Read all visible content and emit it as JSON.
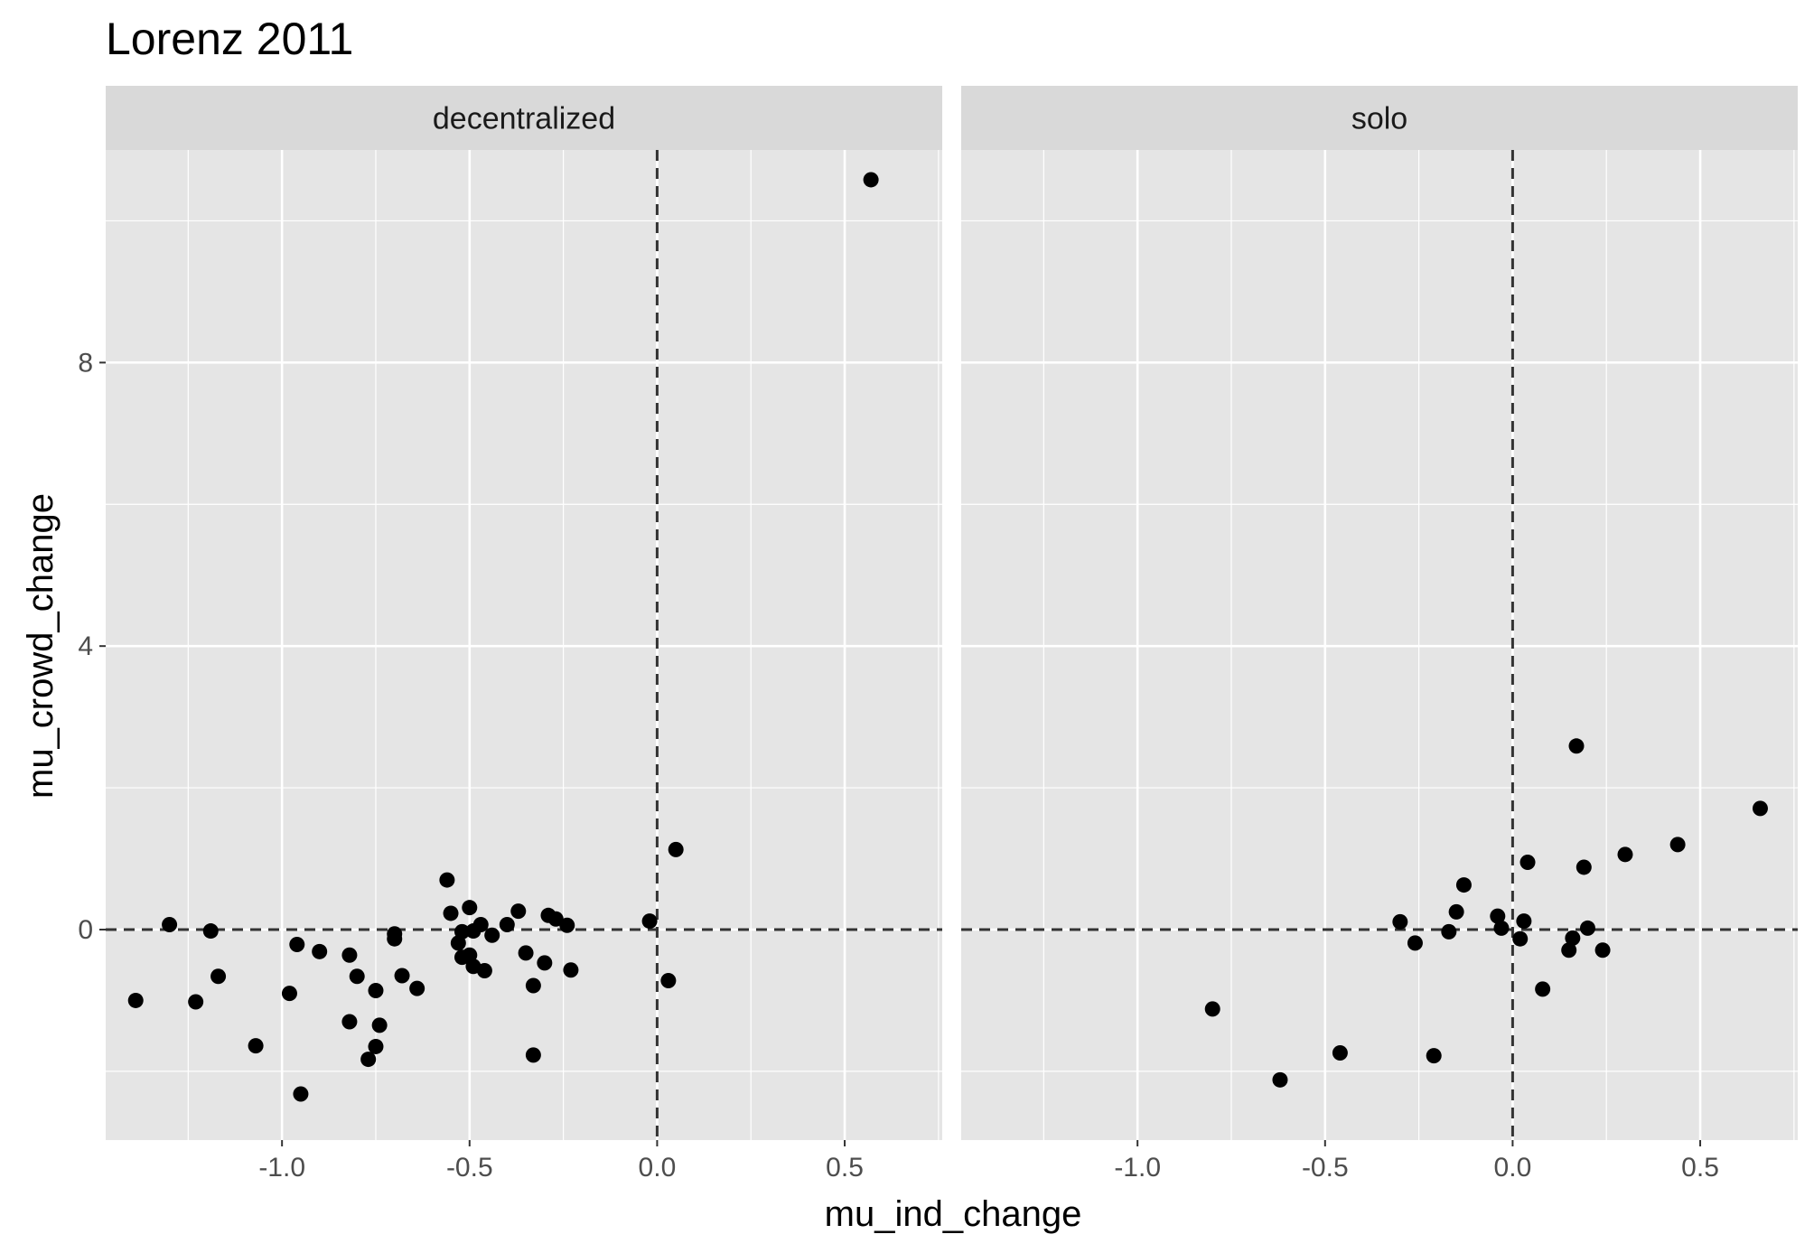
{
  "chart_data": {
    "type": "scatter",
    "title": "Lorenz 2011",
    "xlabel": "mu_ind_change",
    "ylabel": "mu_crowd_change",
    "xlim": [
      -1.47,
      0.76
    ],
    "ylim": [
      -2.97,
      11.0
    ],
    "x_ticks": [
      -1.0,
      -0.5,
      0.0,
      0.5
    ],
    "x_tick_labels": [
      "-1.0",
      "-0.5",
      "0.0",
      "0.5"
    ],
    "y_ticks": [
      0,
      4,
      8
    ],
    "y_tick_labels": [
      "0",
      "4",
      "8"
    ],
    "reference_lines": {
      "x": 0,
      "y": 0,
      "style": "dashed"
    },
    "grid": true,
    "point_color": "#000000",
    "panel_background": "#e5e5e5",
    "strip_background": "#d9d9d9",
    "panels": [
      {
        "name": "decentralized",
        "points": [
          {
            "x": -1.39,
            "y": -1.0
          },
          {
            "x": -1.3,
            "y": 0.07
          },
          {
            "x": -1.23,
            "y": -1.02
          },
          {
            "x": -1.19,
            "y": -0.02
          },
          {
            "x": -1.17,
            "y": -0.66
          },
          {
            "x": -1.07,
            "y": -1.64
          },
          {
            "x": -0.98,
            "y": -0.9
          },
          {
            "x": -0.96,
            "y": -0.21
          },
          {
            "x": -0.95,
            "y": -2.32
          },
          {
            "x": -0.9,
            "y": -0.31
          },
          {
            "x": -0.82,
            "y": -0.36
          },
          {
            "x": -0.82,
            "y": -1.3
          },
          {
            "x": -0.8,
            "y": -0.66
          },
          {
            "x": -0.77,
            "y": -1.83
          },
          {
            "x": -0.75,
            "y": -0.86
          },
          {
            "x": -0.75,
            "y": -1.65
          },
          {
            "x": -0.74,
            "y": -1.35
          },
          {
            "x": -0.7,
            "y": -0.06
          },
          {
            "x": -0.7,
            "y": -0.13
          },
          {
            "x": -0.68,
            "y": -0.65
          },
          {
            "x": -0.64,
            "y": -0.83
          },
          {
            "x": -0.56,
            "y": 0.7
          },
          {
            "x": -0.55,
            "y": 0.23
          },
          {
            "x": -0.53,
            "y": -0.19
          },
          {
            "x": -0.52,
            "y": -0.03
          },
          {
            "x": -0.52,
            "y": -0.39
          },
          {
            "x": -0.5,
            "y": 0.31
          },
          {
            "x": -0.5,
            "y": -0.36
          },
          {
            "x": -0.49,
            "y": -0.52
          },
          {
            "x": -0.49,
            "y": -0.02
          },
          {
            "x": -0.47,
            "y": 0.07
          },
          {
            "x": -0.46,
            "y": -0.58
          },
          {
            "x": -0.44,
            "y": -0.08
          },
          {
            "x": -0.4,
            "y": 0.07
          },
          {
            "x": -0.37,
            "y": 0.26
          },
          {
            "x": -0.35,
            "y": -0.33
          },
          {
            "x": -0.33,
            "y": -0.79
          },
          {
            "x": -0.33,
            "y": -1.77
          },
          {
            "x": -0.3,
            "y": -0.47
          },
          {
            "x": -0.29,
            "y": 0.2
          },
          {
            "x": -0.27,
            "y": 0.15
          },
          {
            "x": -0.24,
            "y": 0.06
          },
          {
            "x": -0.23,
            "y": -0.57
          },
          {
            "x": -0.02,
            "y": 0.12
          },
          {
            "x": 0.03,
            "y": -0.72
          },
          {
            "x": 0.05,
            "y": 1.13
          },
          {
            "x": 0.57,
            "y": 10.58
          }
        ]
      },
      {
        "name": "solo",
        "points": [
          {
            "x": -0.8,
            "y": -1.12
          },
          {
            "x": -0.62,
            "y": -2.12
          },
          {
            "x": -0.46,
            "y": -1.74
          },
          {
            "x": -0.3,
            "y": 0.11
          },
          {
            "x": -0.26,
            "y": -0.19
          },
          {
            "x": -0.21,
            "y": -1.78
          },
          {
            "x": -0.17,
            "y": -0.03
          },
          {
            "x": -0.15,
            "y": 0.25
          },
          {
            "x": -0.13,
            "y": 0.63
          },
          {
            "x": -0.04,
            "y": 0.19
          },
          {
            "x": -0.03,
            "y": 0.02
          },
          {
            "x": 0.02,
            "y": -0.13
          },
          {
            "x": 0.03,
            "y": 0.12
          },
          {
            "x": 0.04,
            "y": 0.95
          },
          {
            "x": 0.08,
            "y": -0.84
          },
          {
            "x": 0.15,
            "y": -0.29
          },
          {
            "x": 0.16,
            "y": -0.12
          },
          {
            "x": 0.17,
            "y": 2.59
          },
          {
            "x": 0.19,
            "y": 0.88
          },
          {
            "x": 0.2,
            "y": 0.02
          },
          {
            "x": 0.24,
            "y": -0.29
          },
          {
            "x": 0.3,
            "y": 1.06
          },
          {
            "x": 0.44,
            "y": 1.2
          },
          {
            "x": 0.66,
            "y": 1.71
          }
        ]
      }
    ]
  }
}
